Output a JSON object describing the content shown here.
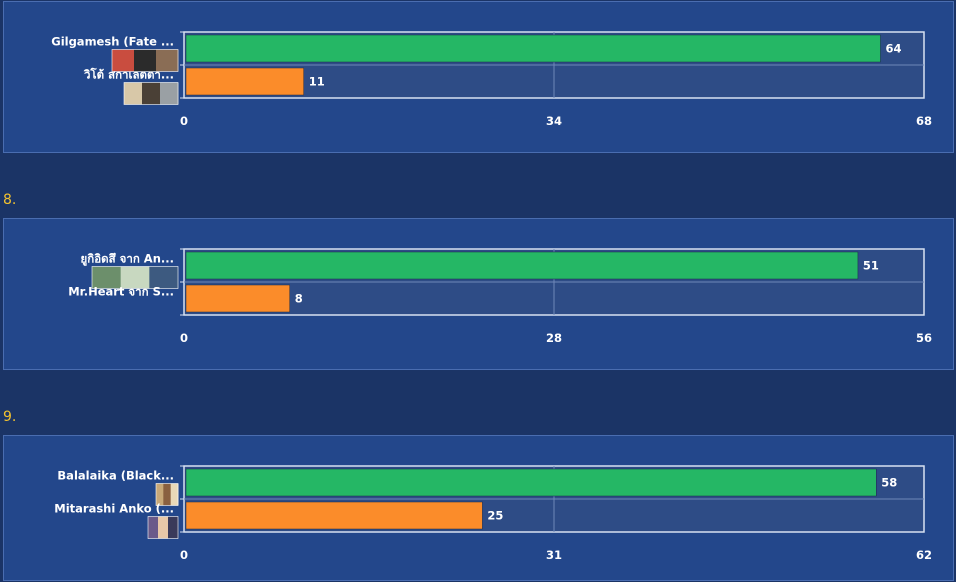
{
  "chart_data": [
    {
      "type": "bar",
      "orientation": "horizontal",
      "number": "",
      "categories": [
        "Gilgamesh (Fate ...",
        "วิโต้ สกาเลตตา..."
      ],
      "values": [
        64,
        11
      ],
      "colors": [
        "#25b765",
        "#fb8c2a"
      ],
      "xlim": [
        0,
        68
      ],
      "ticks": [
        0,
        34,
        68
      ],
      "grid": true
    },
    {
      "type": "bar",
      "orientation": "horizontal",
      "number": "8.",
      "categories": [
        "ยูกิอิดสึ จาก An...",
        "Mr.Heart จาก  S..."
      ],
      "values": [
        51,
        8
      ],
      "colors": [
        "#25b765",
        "#fb8c2a"
      ],
      "xlim": [
        0,
        56
      ],
      "ticks": [
        0,
        28,
        56
      ],
      "grid": true
    },
    {
      "type": "bar",
      "orientation": "horizontal",
      "number": "9.",
      "categories": [
        "Balalaika (Black...",
        "Mitarashi Anko (..."
      ],
      "values": [
        58,
        25
      ],
      "colors": [
        "#25b765",
        "#fb8c2a"
      ],
      "xlim": [
        0,
        62
      ],
      "ticks": [
        0,
        31,
        62
      ],
      "grid": true
    }
  ],
  "thumbnails": [
    "character-thumbnail",
    "character-thumbnail"
  ]
}
